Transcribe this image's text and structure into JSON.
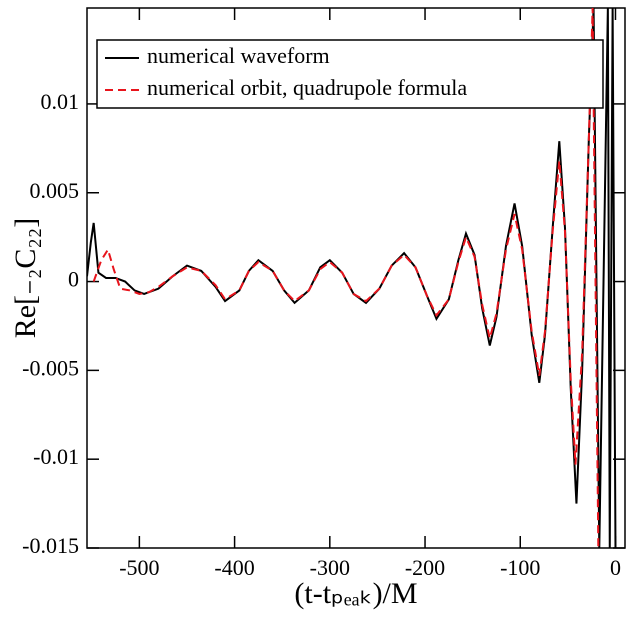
{
  "chart_data": {
    "type": "line",
    "xlabel": "(t-tₚₑₐₖ)/M",
    "ylabel": "Re[₋₂C₂₂]",
    "xlim": [
      -555,
      10
    ],
    "xticks": [
      -500,
      -400,
      -300,
      -200,
      -100,
      0
    ],
    "ylim": [
      -0.015,
      0.0154
    ],
    "yticks": [
      -0.015,
      -0.01,
      -0.005,
      0,
      0.005,
      0.01
    ],
    "legend": "upper left",
    "series": [
      {
        "name": "numerical waveform",
        "color": "#000000",
        "dash": "solid",
        "x": [
          -555,
          -551,
          -548,
          -543,
          -535,
          -525,
          -515,
          -505,
          -495,
          -480,
          -465,
          -450,
          -435,
          -420,
          -410,
          -395,
          -385,
          -375,
          -360,
          -348,
          -337,
          -322,
          -310,
          -300,
          -287,
          -275,
          -262,
          -248,
          -235,
          -222,
          -210,
          -198,
          -188,
          -175,
          -165,
          -157,
          -148,
          -140,
          -132,
          -125,
          -115,
          -106,
          -98,
          -88,
          -80,
          -74,
          -66,
          -59,
          -53,
          -47,
          -41,
          -35,
          -28,
          -23,
          -17,
          -8,
          -6,
          -3,
          0
        ],
        "values": [
          0.0003,
          0.0022,
          0.0033,
          0.0005,
          0.0002,
          0.0002,
          0,
          -0.0005,
          -0.0007,
          -0.0004,
          0.0003,
          0.0009,
          0.0006,
          -0.0003,
          -0.0011,
          -0.0005,
          0.0006,
          0.0012,
          0.0006,
          -0.0005,
          -0.0012,
          -0.0005,
          0.0008,
          0.0012,
          0.0005,
          -0.0007,
          -0.0012,
          -0.0004,
          0.0009,
          0.0016,
          0.0008,
          -0.0008,
          -0.0021,
          -0.001,
          0.0012,
          0.0027,
          0.0015,
          -0.0015,
          -0.0036,
          -0.002,
          0.002,
          0.0044,
          0.002,
          -0.003,
          -0.0057,
          -0.003,
          0.003,
          0.0079,
          0.003,
          -0.006,
          -0.0125,
          -0.005,
          0.008,
          0.0154,
          -0.015,
          0.0154,
          -0.015,
          0.0154,
          -0.015
        ]
      },
      {
        "name": "numerical orbit, quadrupole formula",
        "color": "#e8141c",
        "dash": "dashed",
        "x": [
          -548,
          -540,
          -533,
          -527,
          -520,
          -510,
          -500,
          -490,
          -480,
          -465,
          -450,
          -435,
          -420,
          -410,
          -395,
          -385,
          -375,
          -360,
          -348,
          -337,
          -322,
          -310,
          -300,
          -287,
          -275,
          -262,
          -248,
          -235,
          -222,
          -210,
          -198,
          -188,
          -175,
          -165,
          -157,
          -148,
          -140,
          -132,
          -125,
          -115,
          -106,
          -98,
          -88,
          -80,
          -74,
          -66,
          -59,
          -53,
          -47,
          -42,
          -35,
          -28,
          -24,
          -18
        ],
        "values": [
          0,
          0.0012,
          0.0018,
          0.0007,
          -0.0004,
          -0.0005,
          -0.0007,
          -0.0006,
          -0.0003,
          0.0003,
          0.0008,
          0.0006,
          -0.0002,
          -0.001,
          -0.0005,
          0.0006,
          0.0011,
          0.0006,
          -0.0005,
          -0.0011,
          -0.0005,
          0.0007,
          0.0011,
          0.0005,
          -0.0007,
          -0.0011,
          -0.0004,
          0.0009,
          0.0015,
          0.0008,
          -0.0008,
          -0.0019,
          -0.001,
          0.0011,
          0.0025,
          0.0014,
          -0.0013,
          -0.0032,
          -0.0018,
          0.0018,
          0.0038,
          0.0018,
          -0.0028,
          -0.0053,
          -0.0028,
          0.0028,
          0.0068,
          0.0028,
          -0.0055,
          -0.0103,
          -0.004,
          0.008,
          0.0154,
          -0.015
        ]
      }
    ]
  }
}
